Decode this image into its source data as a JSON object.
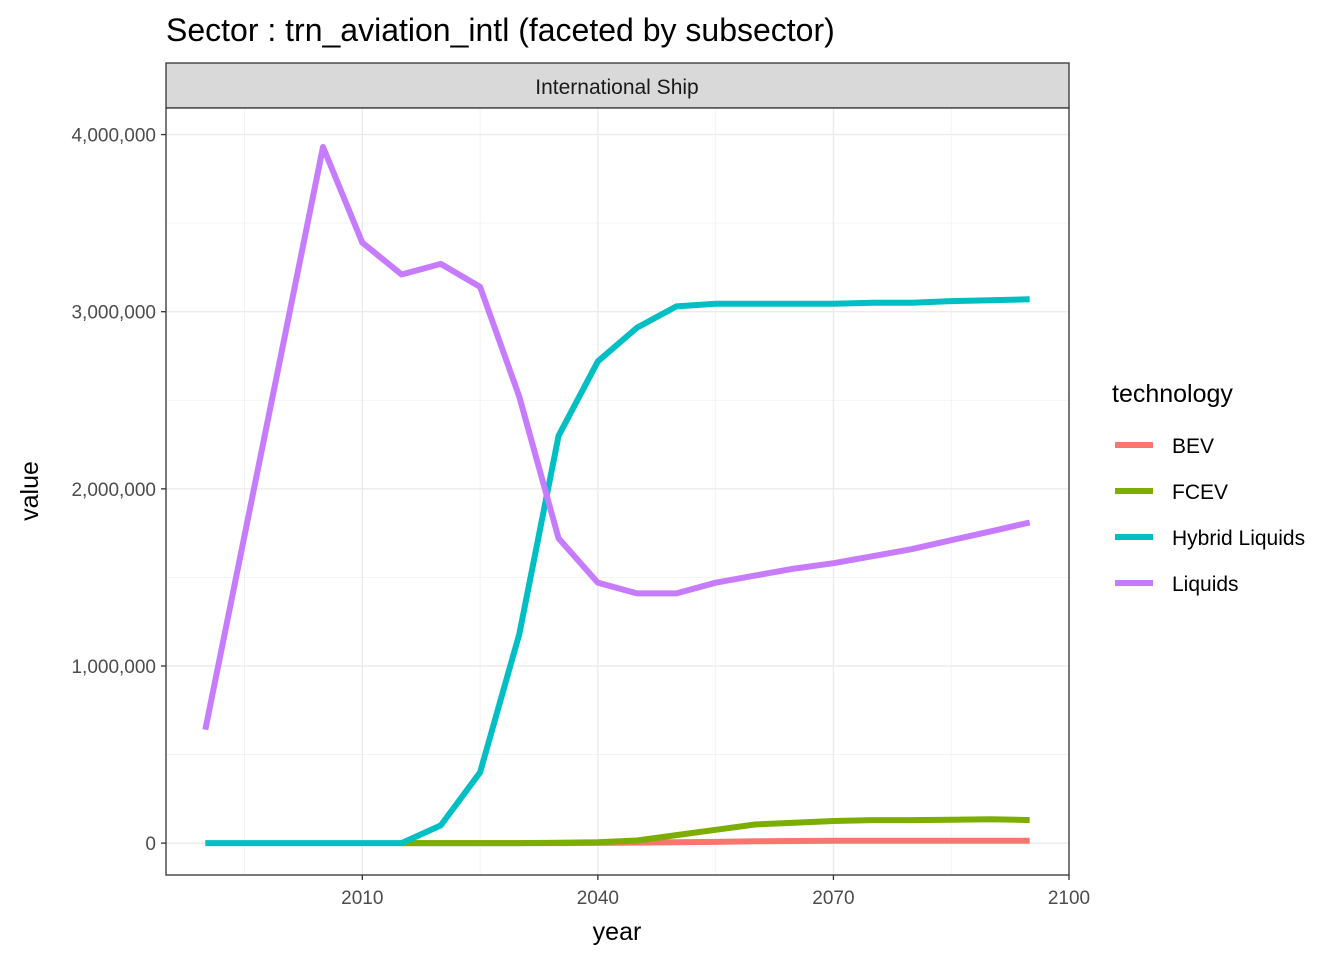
{
  "chart_data": {
    "type": "line",
    "title": "Sector : trn_aviation_intl (faceted by subsector)",
    "facet": "International Ship",
    "xlabel": "year",
    "ylabel": "value",
    "xlim": [
      1985,
      2100
    ],
    "ylim": [
      -180000,
      4150000
    ],
    "x_ticks": [
      2010,
      2040,
      2070,
      2100
    ],
    "x_tick_labels": [
      "2010",
      "2040",
      "2070",
      "2100"
    ],
    "y_ticks": [
      0,
      1000000,
      2000000,
      3000000,
      4000000
    ],
    "y_tick_labels": [
      "0",
      "1,000,000",
      "2,000,000",
      "3,000,000",
      "4,000,000"
    ],
    "grid": true,
    "legend_title": "technology",
    "legend_position": "right",
    "series": [
      {
        "name": "BEV",
        "color": "#F8766D",
        "x": [
          2015,
          2020,
          2025,
          2030,
          2035,
          2040,
          2045,
          2050,
          2055,
          2060,
          2065,
          2070,
          2075,
          2080,
          2085,
          2090,
          2095
        ],
        "values": [
          0,
          0,
          0,
          0,
          0,
          1000,
          3000,
          5000,
          7000,
          10000,
          12000,
          13000,
          13000,
          13000,
          13000,
          13000,
          13000
        ]
      },
      {
        "name": "FCEV",
        "color": "#7CAE00",
        "x": [
          2015,
          2020,
          2025,
          2030,
          2035,
          2040,
          2045,
          2050,
          2055,
          2060,
          2065,
          2070,
          2075,
          2080,
          2085,
          2090,
          2095
        ],
        "values": [
          0,
          0,
          0,
          0,
          2000,
          5000,
          15000,
          45000,
          75000,
          105000,
          115000,
          125000,
          130000,
          130000,
          132000,
          135000,
          130000
        ]
      },
      {
        "name": "Hybrid Liquids",
        "color": "#00BFC4",
        "x": [
          1990,
          2005,
          2010,
          2015,
          2020,
          2025,
          2030,
          2035,
          2040,
          2045,
          2050,
          2055,
          2060,
          2065,
          2070,
          2075,
          2080,
          2085,
          2090,
          2095
        ],
        "values": [
          0,
          0,
          0,
          0,
          100000,
          400000,
          1180000,
          2300000,
          2720000,
          2910000,
          3030000,
          3045000,
          3045000,
          3045000,
          3045000,
          3050000,
          3050000,
          3060000,
          3065000,
          3070000
        ]
      },
      {
        "name": "Liquids",
        "color": "#C77CFF",
        "x": [
          1990,
          2005,
          2010,
          2015,
          2020,
          2025,
          2030,
          2035,
          2040,
          2045,
          2050,
          2055,
          2060,
          2065,
          2070,
          2075,
          2080,
          2085,
          2090,
          2095
        ],
        "values": [
          640000,
          3930000,
          3390000,
          3210000,
          3270000,
          3140000,
          2520000,
          1720000,
          1470000,
          1410000,
          1410000,
          1470000,
          1510000,
          1550000,
          1580000,
          1620000,
          1660000,
          1710000,
          1760000,
          1810000
        ]
      }
    ]
  }
}
